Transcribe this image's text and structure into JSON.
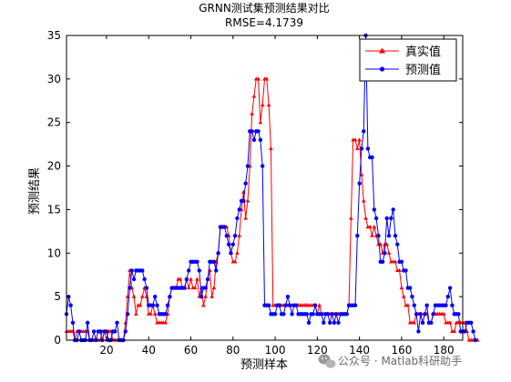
{
  "chart_data": {
    "type": "line",
    "title": "GRNN测试集预测结果对比",
    "subtitle": "RMSE=4.1739",
    "xlabel": "预测样本",
    "ylabel": "预测结果",
    "xlim": [
      1,
      189
    ],
    "ylim": [
      0,
      35
    ],
    "xticks": [
      20,
      40,
      60,
      80,
      100,
      120,
      140,
      160,
      180
    ],
    "yticks": [
      0,
      5,
      10,
      15,
      20,
      25,
      30,
      35
    ],
    "legend_position": "top-right",
    "grid": false,
    "series": [
      {
        "name": "真实值",
        "color": "#ff0000",
        "marker": "triangle",
        "values": [
          1,
          1,
          1,
          1,
          0,
          1,
          1,
          1,
          1,
          1,
          1,
          0,
          0,
          0,
          0,
          0,
          0,
          1,
          1,
          0,
          1,
          1,
          0,
          0,
          0,
          0,
          0,
          0,
          2,
          5,
          8,
          6,
          5,
          3,
          4,
          4,
          5,
          6,
          5,
          3,
          3,
          4,
          3,
          2,
          2,
          2,
          2,
          2,
          3,
          5,
          6,
          6,
          6,
          7,
          7,
          6,
          6,
          7,
          6,
          7,
          6,
          6,
          7,
          5,
          6,
          4,
          5,
          7,
          8,
          5,
          6,
          9,
          10,
          13,
          13,
          13,
          13,
          12,
          10,
          9,
          9,
          10,
          12,
          15,
          17,
          14,
          16,
          20,
          26,
          28,
          30,
          30,
          25,
          27,
          30,
          30,
          27,
          22,
          4,
          4,
          4,
          4,
          4,
          4,
          4,
          4,
          4,
          4,
          4,
          4,
          4,
          4,
          4,
          4,
          4,
          4,
          4,
          4,
          4,
          3,
          4,
          3,
          3,
          3,
          3,
          3,
          3,
          3,
          3,
          3,
          3,
          3,
          3,
          3,
          4,
          14,
          23,
          23,
          22,
          23,
          19,
          16,
          14,
          13,
          13,
          12,
          13,
          12,
          11,
          11,
          10,
          11,
          11,
          10,
          9,
          9,
          9,
          8,
          8,
          6,
          5,
          4,
          4,
          2,
          2,
          2,
          3,
          3,
          3,
          2,
          3,
          3,
          2,
          2,
          3,
          3,
          3,
          3,
          3,
          3,
          2,
          2,
          2,
          1,
          1,
          2,
          2,
          2,
          2,
          2,
          1,
          0,
          0,
          0,
          0,
          0
        ]
      },
      {
        "name": "预测值",
        "color": "#0000ff",
        "marker": "circle",
        "values": [
          3,
          5,
          4,
          2,
          0,
          0,
          1,
          0,
          0,
          0,
          2,
          0,
          0,
          1,
          0,
          1,
          1,
          0,
          1,
          1,
          0,
          0,
          1,
          1,
          2,
          0,
          0,
          0,
          1,
          3,
          6,
          8,
          7,
          8,
          8,
          8,
          8,
          7,
          6,
          4,
          4,
          4,
          5,
          4,
          3,
          3,
          3,
          3,
          4,
          5,
          6,
          6,
          6,
          6,
          6,
          6,
          6,
          7,
          8,
          9,
          9,
          9,
          9,
          8,
          5,
          6,
          6,
          7,
          9,
          9,
          9,
          8,
          10,
          13,
          13,
          13,
          12,
          11,
          10,
          11,
          12,
          14,
          15,
          16,
          16,
          18,
          20,
          24,
          24,
          23,
          24,
          24,
          23,
          20,
          4,
          4,
          4,
          3,
          3,
          3,
          4,
          4,
          3,
          3,
          4,
          5,
          4,
          3,
          4,
          4,
          3,
          3,
          3,
          3,
          3,
          2,
          3,
          3,
          4,
          3,
          3,
          3,
          2,
          3,
          3,
          2,
          3,
          2,
          3,
          2,
          3,
          3,
          3,
          3,
          4,
          4,
          4,
          4,
          12,
          18,
          22,
          24,
          35,
          22,
          21,
          21,
          15,
          14,
          12,
          9,
          9,
          10,
          14,
          12,
          14,
          15,
          12,
          11,
          9,
          9,
          8,
          8,
          6,
          6,
          5,
          4,
          3,
          1,
          3,
          2,
          3,
          4,
          2,
          2,
          3,
          4,
          4,
          4,
          4,
          4,
          4,
          5,
          6,
          4,
          3,
          3,
          3,
          1,
          1,
          1,
          2,
          2,
          2,
          1,
          0
        ]
      }
    ]
  },
  "watermark": {
    "text": "公众号 · Matlab科研助手",
    "icon": "wechat-icon"
  }
}
